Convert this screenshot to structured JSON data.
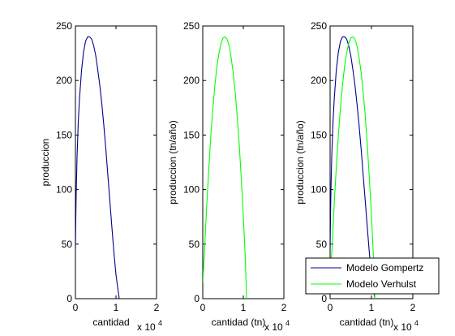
{
  "chart_data": [
    {
      "type": "line",
      "xlim": [
        0,
        20000
      ],
      "ylim": [
        0,
        250
      ],
      "x_ticks": [
        0,
        10000,
        20000
      ],
      "x_tick_labels": [
        "0",
        "1",
        "2"
      ],
      "x_exponent": "x 10",
      "x_exponent_power": "4",
      "y_ticks": [
        0,
        50,
        100,
        150,
        200,
        250
      ],
      "y_tick_labels": [
        "0",
        "50",
        "100",
        "150",
        "200",
        "250"
      ],
      "xlabel": "cantidad",
      "ylabel": "produccion",
      "grid": false,
      "series": [
        {
          "color": "#00008f",
          "x": [
            0,
            100,
            200,
            400,
            700,
            1000,
            1500,
            2000,
            2500,
            3000,
            3500,
            4000,
            4500,
            5000,
            5500,
            6000,
            6500,
            7000,
            7500,
            8000,
            8500,
            9000,
            9500,
            10000,
            10500,
            10800
          ],
          "y": [
            45,
            75,
            98,
            130,
            162,
            183,
            209,
            226,
            236,
            240,
            240,
            238,
            232,
            223,
            210,
            196,
            179,
            159,
            137,
            113,
            89,
            65,
            42,
            22,
            8,
            0
          ]
        }
      ]
    },
    {
      "type": "line",
      "xlim": [
        0,
        20000
      ],
      "ylim": [
        0,
        250
      ],
      "x_ticks": [
        0,
        10000,
        20000
      ],
      "x_tick_labels": [
        "0",
        "1",
        "2"
      ],
      "x_exponent": "x 10",
      "x_exponent_power": "4",
      "y_ticks": [
        0,
        50,
        100,
        150,
        200,
        250
      ],
      "y_tick_labels": [
        "0",
        "50",
        "100",
        "150",
        "200",
        "250"
      ],
      "xlabel": "cantidad (tn)",
      "ylabel": "produccion (tn/año)",
      "grid": false,
      "series": [
        {
          "color": "#00ff00",
          "x": [
            0,
            500,
            1000,
            1500,
            2000,
            2500,
            3000,
            3500,
            4000,
            4500,
            5000,
            5500,
            6000,
            6500,
            7000,
            7500,
            8000,
            8500,
            9000,
            9500,
            10000,
            10500,
            10800
          ],
          "y": [
            15,
            49,
            87,
            120,
            150,
            175,
            196,
            213,
            225,
            234,
            239,
            240,
            238,
            232,
            221,
            207,
            189,
            167,
            141,
            110,
            76,
            36,
            0
          ]
        }
      ]
    },
    {
      "type": "line",
      "xlim": [
        0,
        20000
      ],
      "ylim": [
        0,
        250
      ],
      "x_ticks": [
        0,
        10000,
        20000
      ],
      "x_tick_labels": [
        "0",
        "1",
        "2"
      ],
      "x_exponent": "x 10",
      "x_exponent_power": "4",
      "y_ticks": [
        0,
        50,
        100,
        150,
        200,
        250
      ],
      "y_tick_labels": [
        "0",
        "50",
        "100",
        "150",
        "200",
        "250"
      ],
      "xlabel": "cantidad (tn)",
      "ylabel": "produccion (tn/año)",
      "grid": false,
      "legend_position": "bottom-right",
      "series": [
        {
          "name": "Modelo Gompertz",
          "color": "#00008f",
          "x": [
            0,
            100,
            200,
            400,
            700,
            1000,
            1500,
            2000,
            2500,
            3000,
            3500,
            4000,
            4500,
            5000,
            5500,
            6000,
            6500,
            7000,
            7500,
            8000,
            8500,
            9000,
            9500,
            10000,
            10500,
            10800
          ],
          "y": [
            45,
            75,
            98,
            130,
            162,
            183,
            209,
            226,
            236,
            240,
            240,
            238,
            232,
            223,
            210,
            196,
            179,
            159,
            137,
            113,
            89,
            65,
            42,
            22,
            8,
            0
          ]
        },
        {
          "name": "Modelo Verhulst",
          "color": "#00ff00",
          "x": [
            0,
            500,
            1000,
            1500,
            2000,
            2500,
            3000,
            3500,
            4000,
            4500,
            5000,
            5500,
            6000,
            6500,
            7000,
            7500,
            8000,
            8500,
            9000,
            9500,
            10000,
            10500,
            10800
          ],
          "y": [
            15,
            49,
            87,
            120,
            150,
            175,
            196,
            213,
            225,
            234,
            239,
            240,
            238,
            232,
            221,
            207,
            189,
            167,
            141,
            110,
            76,
            36,
            0
          ]
        }
      ]
    }
  ]
}
